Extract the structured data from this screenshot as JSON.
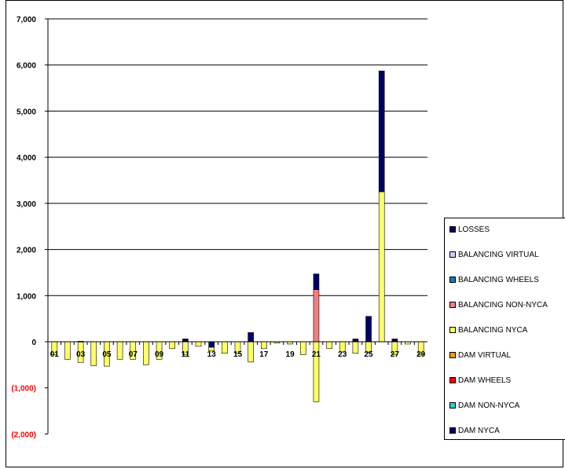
{
  "chart_data": {
    "type": "bar",
    "stacked": true,
    "y_ticks": [
      "7,000",
      "6,000",
      "5,000",
      "4,000",
      "3,000",
      "2,000",
      "1,000",
      "0",
      "(1,000)",
      "(2,000)"
    ],
    "y_tick_values": [
      7000,
      6000,
      5000,
      4000,
      3000,
      2000,
      1000,
      0,
      -1000,
      -2000
    ],
    "ylim": [
      -2000,
      7000
    ],
    "x_tick_labels": [
      "01",
      "03",
      "05",
      "07",
      "09",
      "11",
      "13",
      "15",
      "17",
      "19",
      "21",
      "23",
      "25",
      "27",
      "29"
    ],
    "categories": [
      "01",
      "02",
      "03",
      "04",
      "05",
      "06",
      "07",
      "08",
      "09",
      "10",
      "11",
      "12",
      "13",
      "14",
      "15",
      "16",
      "17",
      "18",
      "19",
      "20",
      "21",
      "22",
      "23",
      "24",
      "25",
      "26",
      "27",
      "28",
      "29"
    ],
    "grid": "horizontal",
    "legend_position": "right",
    "series": [
      {
        "name": "LOSSES",
        "color": "#000066",
        "values": [
          0,
          0,
          10,
          0,
          0,
          0,
          0,
          0,
          0,
          0,
          60,
          0,
          0,
          0,
          0,
          200,
          0,
          0,
          0,
          0,
          340,
          0,
          0,
          60,
          550,
          2620,
          60,
          0,
          0
        ]
      },
      {
        "name": "BALANCING VIRTUAL",
        "color": "#ccccff",
        "values": [
          0,
          0,
          0,
          0,
          0,
          0,
          0,
          0,
          0,
          0,
          0,
          0,
          0,
          0,
          0,
          0,
          0,
          0,
          0,
          0,
          0,
          0,
          0,
          0,
          0,
          0,
          0,
          0,
          0
        ]
      },
      {
        "name": "BALANCING WHEELS",
        "color": "#1f77b4",
        "values": [
          0,
          0,
          0,
          0,
          0,
          0,
          0,
          0,
          0,
          0,
          0,
          0,
          0,
          0,
          0,
          0,
          0,
          0,
          0,
          0,
          0,
          0,
          0,
          0,
          0,
          0,
          0,
          0,
          0
        ]
      },
      {
        "name": "BALANCING NON-NYCA",
        "color": "#f08080",
        "values": [
          0,
          0,
          0,
          0,
          0,
          0,
          0,
          0,
          0,
          0,
          0,
          0,
          0,
          0,
          0,
          0,
          0,
          0,
          0,
          0,
          1130,
          0,
          0,
          0,
          0,
          0,
          0,
          0,
          0
        ]
      },
      {
        "name": "BALANCING NYCA",
        "color": "#ffff66",
        "values": [
          -280,
          -380,
          -450,
          -520,
          -530,
          -380,
          -380,
          -500,
          -380,
          -150,
          -280,
          -100,
          -80,
          -250,
          -250,
          -440,
          -150,
          -30,
          -50,
          -280,
          -1300,
          -150,
          -220,
          -250,
          -230,
          3250,
          -280,
          -50,
          -280
        ]
      },
      {
        "name": "DAM VIRTUAL",
        "color": "#ff9900",
        "values": [
          0,
          0,
          0,
          0,
          0,
          0,
          0,
          0,
          0,
          0,
          0,
          0,
          0,
          0,
          0,
          0,
          0,
          0,
          0,
          0,
          0,
          0,
          0,
          0,
          0,
          0,
          0,
          0,
          0
        ]
      },
      {
        "name": "DAM WHEELS",
        "color": "#ff0000",
        "values": [
          0,
          0,
          0,
          0,
          0,
          0,
          0,
          0,
          0,
          0,
          0,
          0,
          0,
          0,
          0,
          0,
          0,
          0,
          0,
          0,
          0,
          0,
          0,
          0,
          0,
          0,
          0,
          0,
          0
        ]
      },
      {
        "name": "DAM NON-NYCA",
        "color": "#33cccc",
        "values": [
          0,
          0,
          0,
          0,
          0,
          0,
          0,
          0,
          0,
          0,
          0,
          0,
          0,
          0,
          0,
          0,
          0,
          0,
          0,
          0,
          0,
          0,
          0,
          0,
          0,
          0,
          0,
          0,
          0
        ]
      },
      {
        "name": "DAM NYCA",
        "color": "#000066",
        "values": [
          0,
          0,
          0,
          0,
          0,
          0,
          0,
          0,
          0,
          0,
          0,
          0,
          -120,
          0,
          0,
          0,
          0,
          0,
          0,
          0,
          0,
          0,
          0,
          0,
          0,
          0,
          0,
          0,
          0
        ]
      }
    ]
  }
}
